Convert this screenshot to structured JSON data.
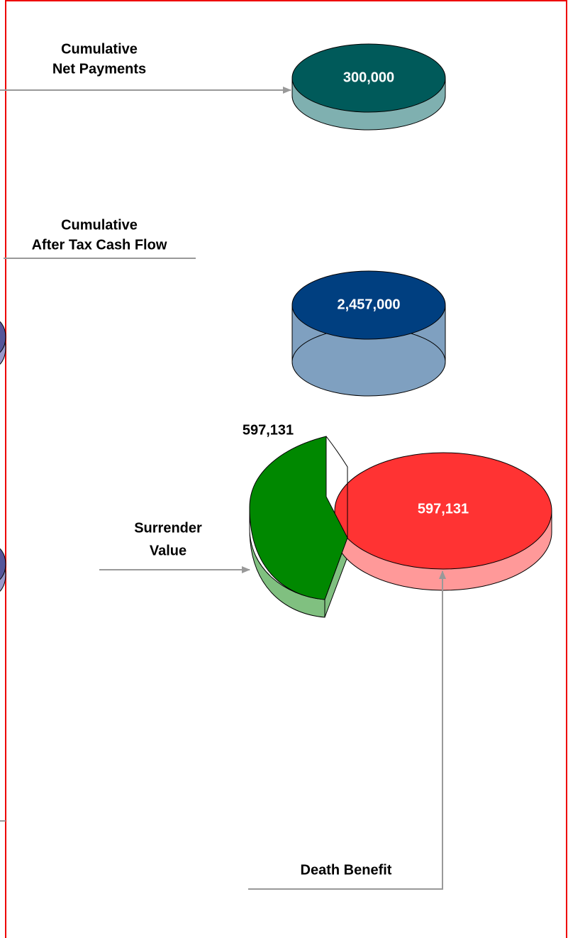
{
  "net_payments": {
    "title": [
      "Cumulative",
      "Net Payments"
    ],
    "value": "300,000"
  },
  "cash_flow": {
    "title": [
      "Cumulative",
      "After Tax Cash Flow"
    ],
    "value": "2,457,000"
  },
  "surrender": {
    "title": [
      "Surrender",
      "Value"
    ],
    "value": "597,131"
  },
  "death_benefit": {
    "title": "Death Benefit",
    "value": "597,131"
  }
}
